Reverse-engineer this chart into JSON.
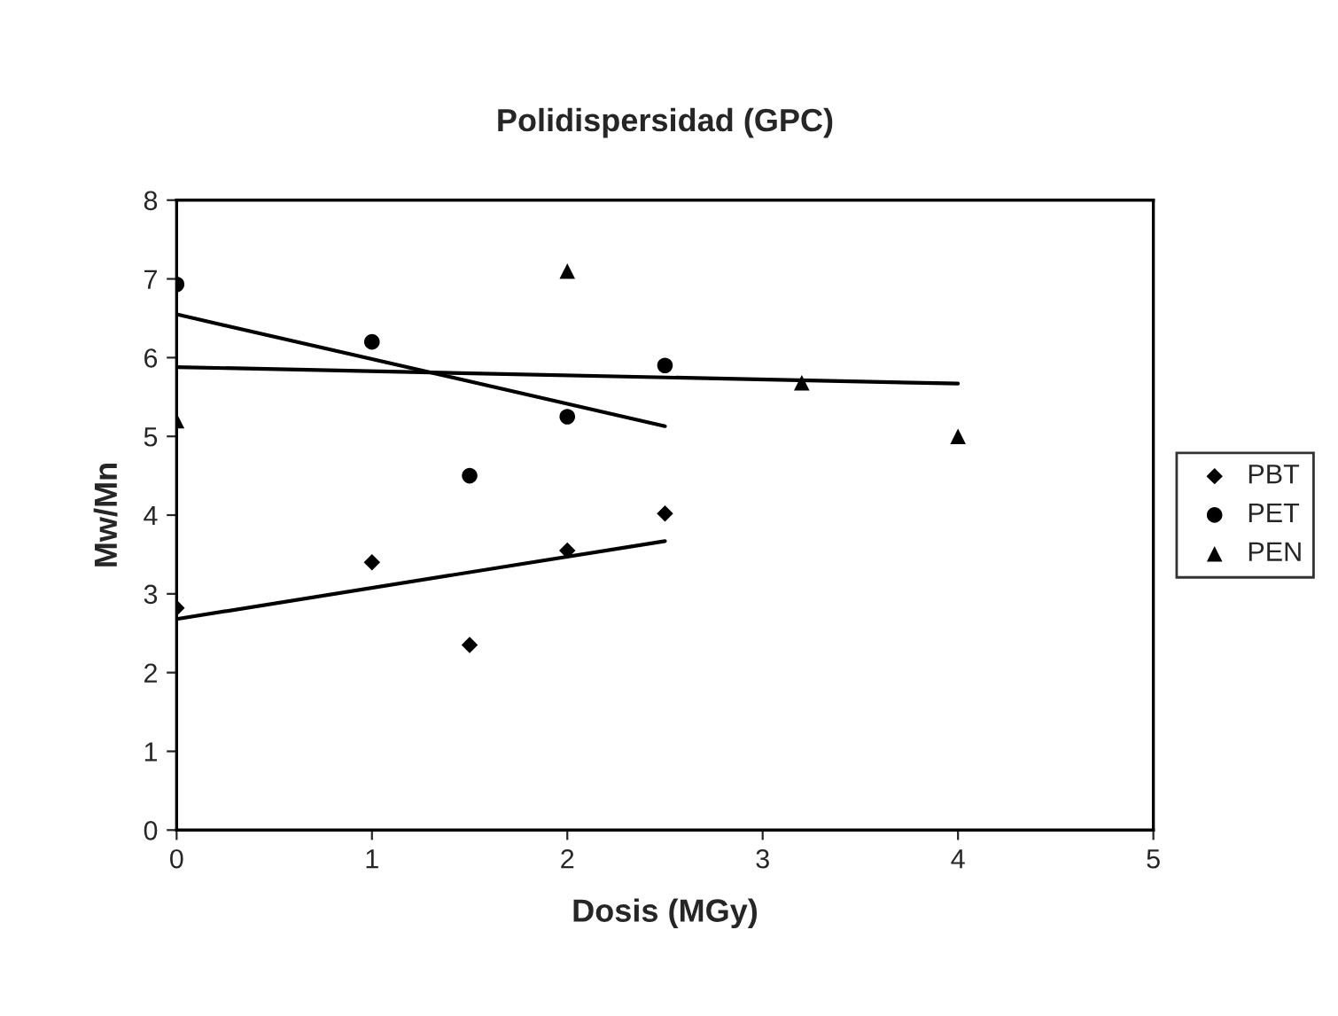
{
  "chart_data": {
    "type": "scatter",
    "title": "Polidispersidad (GPC)",
    "xlabel": "Dosis (MGy)",
    "ylabel": "Mw/Mn",
    "xlim": [
      0,
      5
    ],
    "xticks": [
      0,
      1,
      2,
      3,
      4,
      5
    ],
    "ylim": [
      0,
      8
    ],
    "yticks": [
      0,
      1,
      2,
      3,
      4,
      5,
      6,
      7,
      8
    ],
    "grid": false,
    "legend": "right",
    "series": [
      {
        "name": "PBT",
        "color": "#000000",
        "marker": "diamond",
        "x": [
          0,
          1,
          1.5,
          2,
          2.5
        ],
        "values": [
          2.82,
          3.4,
          2.35,
          3.55,
          4.02
        ]
      },
      {
        "name": "PET",
        "color": "#000000",
        "marker": "circle",
        "x": [
          0,
          1,
          1.5,
          2,
          2.5
        ],
        "values": [
          6.93,
          6.2,
          4.5,
          5.25,
          5.9
        ]
      },
      {
        "name": "PEN",
        "color": "#000000",
        "marker": "triangle",
        "x": [
          0,
          2,
          3.2,
          4
        ],
        "values": [
          5.2,
          7.1,
          5.68,
          5.0
        ]
      },
      {
        "type": "line",
        "color": "#000000",
        "x": [
          0,
          2.5
        ],
        "values": [
          2.68,
          3.67
        ]
      },
      {
        "type": "line",
        "color": "#000000",
        "x": [
          0,
          2.5
        ],
        "values": [
          6.55,
          5.13
        ]
      },
      {
        "type": "line",
        "color": "#000000",
        "x": [
          0,
          4
        ],
        "values": [
          5.88,
          5.67
        ]
      }
    ]
  }
}
